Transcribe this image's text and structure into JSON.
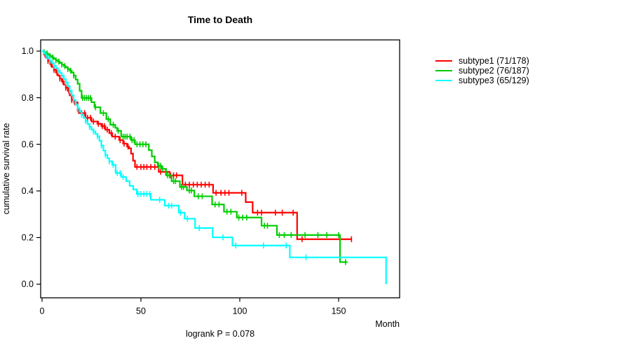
{
  "chart_data": {
    "type": "line",
    "variant": "kaplan-meier-step",
    "title": "Time to Death",
    "xlabel": "Month",
    "ylabel": "cumulative survival rate",
    "annotation": "logrank P = 0.078",
    "xlim": [
      0,
      181
    ],
    "ylim": [
      0.0,
      1.0
    ],
    "grid": false,
    "legend_position": "right-outside",
    "x_ticks": [
      {
        "label": "0",
        "value": 0
      },
      {
        "label": "50",
        "value": 50
      },
      {
        "label": "100",
        "value": 100
      },
      {
        "label": "150",
        "value": 150
      }
    ],
    "y_ticks": [
      {
        "label": "0.0",
        "value": 0.0
      },
      {
        "label": "0.2",
        "value": 0.2
      },
      {
        "label": "0.4",
        "value": 0.4
      },
      {
        "label": "0.6",
        "value": 0.6
      },
      {
        "label": "0.8",
        "value": 0.8
      },
      {
        "label": "1.0",
        "value": 1.0
      }
    ],
    "series": [
      {
        "id": "subtype1",
        "label": "subtype1 (71/178)",
        "events": 71,
        "total": 178,
        "color": "#ff0000",
        "end_month": 156.6,
        "points": [
          [
            0,
            1.0
          ],
          [
            1,
            0.985
          ],
          [
            2,
            0.972
          ],
          [
            3,
            0.958
          ],
          [
            4,
            0.945
          ],
          [
            5,
            0.932
          ],
          [
            6,
            0.92
          ],
          [
            7,
            0.908
          ],
          [
            8,
            0.895
          ],
          [
            9,
            0.882
          ],
          [
            10,
            0.87
          ],
          [
            11,
            0.856
          ],
          [
            12,
            0.843
          ],
          [
            13,
            0.83
          ],
          [
            14,
            0.81
          ],
          [
            15,
            0.79
          ],
          [
            16,
            0.78
          ],
          [
            18,
            0.744
          ],
          [
            19,
            0.734
          ],
          [
            22,
            0.714
          ],
          [
            25,
            0.698
          ],
          [
            28,
            0.688
          ],
          [
            30,
            0.678
          ],
          [
            32,
            0.663
          ],
          [
            34,
            0.648
          ],
          [
            35.5,
            0.633
          ],
          [
            39,
            0.618
          ],
          [
            41,
            0.603
          ],
          [
            43,
            0.59
          ],
          [
            44,
            0.583
          ],
          [
            45,
            0.56
          ],
          [
            46,
            0.53
          ],
          [
            47,
            0.503
          ],
          [
            59,
            0.482
          ],
          [
            64.5,
            0.467
          ],
          [
            71,
            0.427
          ],
          [
            86.5,
            0.392
          ],
          [
            103,
            0.352
          ],
          [
            106.5,
            0.307
          ],
          [
            129,
            0.193
          ]
        ],
        "censor_ticks": [
          1.5,
          3,
          4.5,
          6,
          7.5,
          9,
          10.5,
          12,
          13.5,
          15,
          16.5,
          18.5,
          20,
          21.5,
          23,
          24.5,
          26,
          28.5,
          30.5,
          31.5,
          33,
          35,
          37,
          39.5,
          41.5,
          43.5,
          48,
          50,
          51.5,
          53,
          55,
          57,
          60,
          62.5,
          65,
          66.5,
          68,
          72.5,
          74.5,
          76.5,
          78.5,
          80.5,
          82.5,
          84.5,
          88,
          90.5,
          92.5,
          94.5,
          101,
          109,
          111,
          118,
          121.5,
          127,
          131.5,
          156.5
        ]
      },
      {
        "id": "subtype2",
        "label": "subtype2 (76/187)",
        "events": 76,
        "total": 187,
        "color": "#00cd00",
        "end_month": 154.5,
        "points": [
          [
            0,
            1.0
          ],
          [
            1,
            0.995
          ],
          [
            2,
            0.99
          ],
          [
            3,
            0.985
          ],
          [
            4,
            0.979
          ],
          [
            5,
            0.973
          ],
          [
            6,
            0.967
          ],
          [
            7,
            0.961
          ],
          [
            8,
            0.955
          ],
          [
            9,
            0.949
          ],
          [
            10,
            0.942
          ],
          [
            11,
            0.936
          ],
          [
            12,
            0.93
          ],
          [
            13,
            0.923
          ],
          [
            14,
            0.916
          ],
          [
            15,
            0.908
          ],
          [
            16,
            0.895
          ],
          [
            17,
            0.878
          ],
          [
            18,
            0.86
          ],
          [
            19,
            0.83
          ],
          [
            20,
            0.799
          ],
          [
            25,
            0.781
          ],
          [
            26.5,
            0.759
          ],
          [
            29.5,
            0.734
          ],
          [
            32.5,
            0.708
          ],
          [
            34.5,
            0.684
          ],
          [
            37,
            0.671
          ],
          [
            38,
            0.658
          ],
          [
            40,
            0.633
          ],
          [
            45,
            0.618
          ],
          [
            47,
            0.6
          ],
          [
            54,
            0.575
          ],
          [
            55.5,
            0.548
          ],
          [
            57,
            0.523
          ],
          [
            58.5,
            0.508
          ],
          [
            60.5,
            0.495
          ],
          [
            62.7,
            0.467
          ],
          [
            65.5,
            0.442
          ],
          [
            69.7,
            0.417
          ],
          [
            73.3,
            0.402
          ],
          [
            77,
            0.377
          ],
          [
            86,
            0.342
          ],
          [
            92,
            0.311
          ],
          [
            98.5,
            0.286
          ],
          [
            111,
            0.251
          ],
          [
            118.8,
            0.211
          ],
          [
            150.7,
            0.095
          ]
        ],
        "censor_ticks": [
          1,
          2.5,
          4,
          5.5,
          7,
          8.5,
          10,
          11.5,
          13,
          14.5,
          16,
          20.5,
          21.5,
          22.5,
          23.5,
          24.5,
          27,
          31,
          33.5,
          36,
          38.5,
          41,
          42,
          43,
          44.5,
          45.5,
          46.5,
          48,
          49.5,
          51,
          52.5,
          59,
          60,
          61,
          63.5,
          64.5,
          66.5,
          67.5,
          70.5,
          71.5,
          74.5,
          75.5,
          79,
          81,
          87.5,
          89.5,
          93.5,
          95.5,
          99.5,
          101.5,
          103.5,
          112.5,
          114,
          120,
          122.5,
          126,
          133,
          139.5,
          144,
          150,
          153.5
        ]
      },
      {
        "id": "subtype3",
        "label": "subtype3 (65/129)",
        "events": 65,
        "total": 129,
        "color": "#00ffff",
        "end_month": 174,
        "points": [
          [
            0,
            1.0
          ],
          [
            1,
            0.99
          ],
          [
            2,
            0.979
          ],
          [
            3,
            0.969
          ],
          [
            4,
            0.958
          ],
          [
            5,
            0.948
          ],
          [
            6,
            0.937
          ],
          [
            7,
            0.927
          ],
          [
            8,
            0.916
          ],
          [
            9,
            0.906
          ],
          [
            10,
            0.895
          ],
          [
            11,
            0.88
          ],
          [
            12,
            0.865
          ],
          [
            13,
            0.85
          ],
          [
            14,
            0.83
          ],
          [
            15,
            0.81
          ],
          [
            16,
            0.79
          ],
          [
            17,
            0.77
          ],
          [
            18,
            0.755
          ],
          [
            19,
            0.74
          ],
          [
            20,
            0.726
          ],
          [
            21,
            0.713
          ],
          [
            22,
            0.7
          ],
          [
            23,
            0.687
          ],
          [
            24,
            0.675
          ],
          [
            25,
            0.663
          ],
          [
            26,
            0.655
          ],
          [
            27,
            0.645
          ],
          [
            28,
            0.635
          ],
          [
            29,
            0.615
          ],
          [
            30,
            0.595
          ],
          [
            31,
            0.573
          ],
          [
            32,
            0.555
          ],
          [
            33,
            0.54
          ],
          [
            34,
            0.527
          ],
          [
            35.5,
            0.512
          ],
          [
            37.2,
            0.477
          ],
          [
            40,
            0.46
          ],
          [
            42.5,
            0.442
          ],
          [
            44.3,
            0.422
          ],
          [
            46.1,
            0.407
          ],
          [
            47.9,
            0.387
          ],
          [
            55,
            0.362
          ],
          [
            62,
            0.337
          ],
          [
            69.1,
            0.307
          ],
          [
            72.1,
            0.281
          ],
          [
            77.4,
            0.241
          ],
          [
            86.3,
            0.201
          ],
          [
            96.3,
            0.166
          ],
          [
            125.3,
            0.115
          ],
          [
            174,
            0.0
          ]
        ],
        "censor_ticks": [
          2,
          4,
          6,
          8,
          10,
          12,
          14,
          16,
          18,
          20,
          22,
          24,
          26,
          28,
          30,
          32,
          34,
          36,
          38,
          39.5,
          41,
          48.5,
          50,
          51.5,
          53,
          54.5,
          59.5,
          64,
          65.5,
          70,
          73.5,
          79.5,
          91.5,
          98,
          112,
          123.5,
          133.5
        ]
      }
    ]
  }
}
